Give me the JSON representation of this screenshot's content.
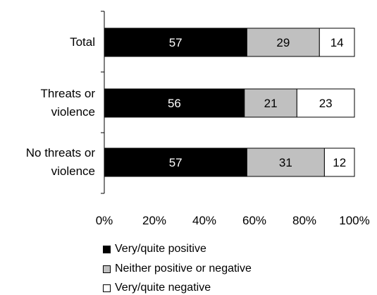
{
  "chart_data": {
    "type": "bar",
    "orientation": "horizontal",
    "stacked": true,
    "categories": [
      "Total",
      "Threats or violence",
      "No threats or violence"
    ],
    "category_lines": [
      [
        "Total"
      ],
      [
        "Threats or",
        "violence"
      ],
      [
        "No threats or",
        "violence"
      ]
    ],
    "series": [
      {
        "name": "Very/quite positive",
        "values": [
          57,
          56,
          57
        ],
        "color": "#000000",
        "label_color": "#ffffff"
      },
      {
        "name": "Neither positive or negative",
        "values": [
          29,
          21,
          31
        ],
        "color": "#c0c0c0",
        "label_color": "#000000"
      },
      {
        "name": "Very/quite negative",
        "values": [
          14,
          23,
          12
        ],
        "color": "#ffffff",
        "label_color": "#000000"
      }
    ],
    "xlim": [
      0,
      100
    ],
    "x_ticks": [
      "0%",
      "20%",
      "40%",
      "60%",
      "80%",
      "100%"
    ],
    "grid": false,
    "legend_position": "bottom"
  }
}
